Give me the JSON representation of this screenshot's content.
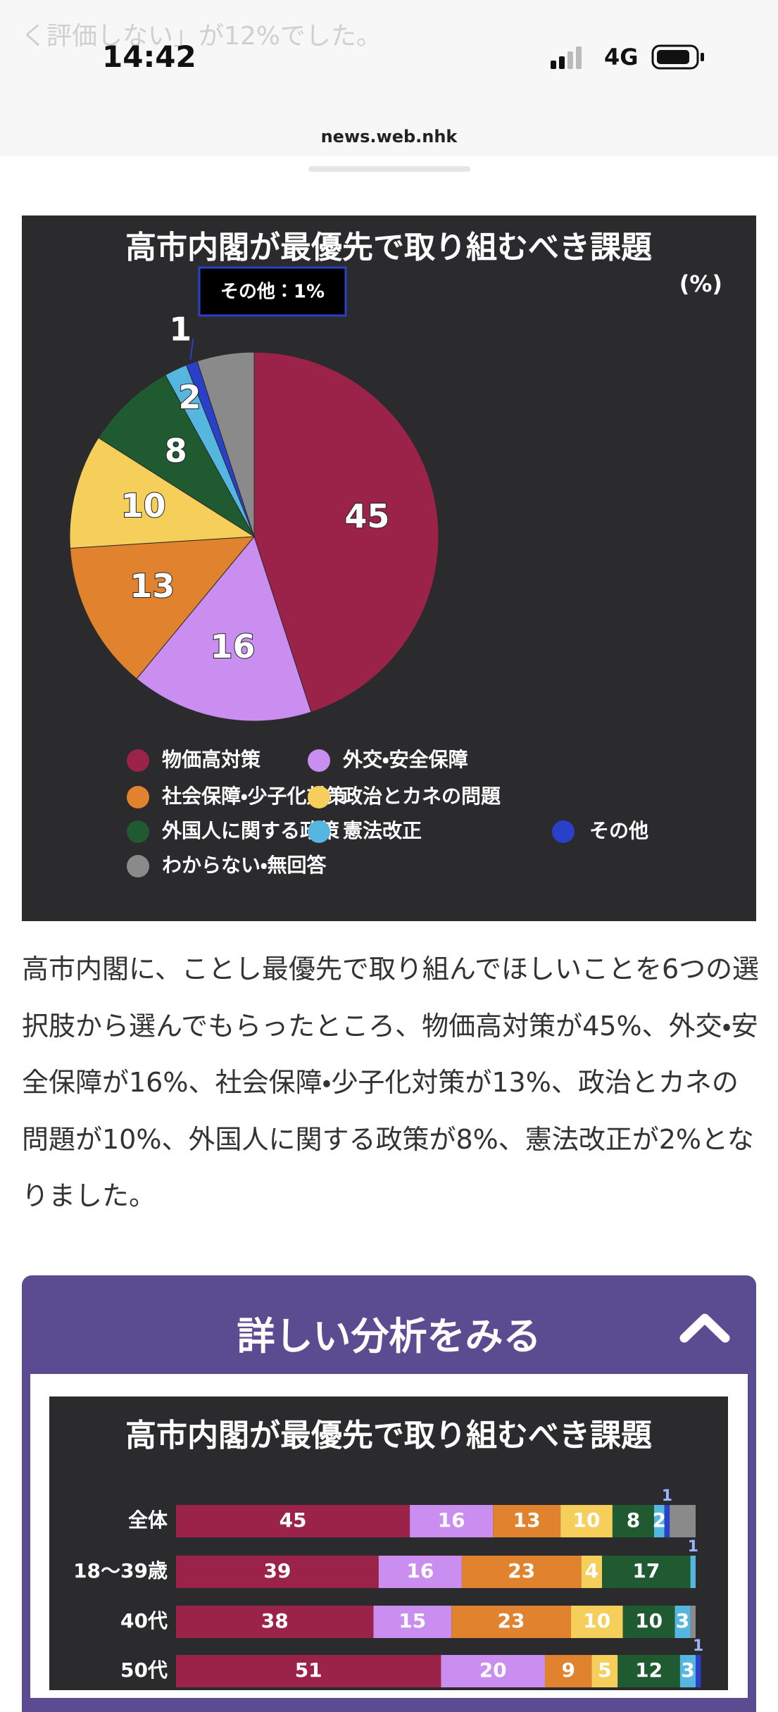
{
  "status_bar": {
    "time": "14:42",
    "network": "4G"
  },
  "top_fragment": "く評価しない」が12%でした。",
  "url": "news.web.nhk",
  "chart_data": [
    {
      "type": "pie",
      "title": "高市内閣が最優先で取り組むべき課題",
      "unit_label": "(%)",
      "tooltip": "その他：1%",
      "categories": [
        "物価高対策",
        "外交・安全保障",
        "社会保障・少子化対策",
        "政治とカネの問題",
        "外国人に関する政策",
        "憲法改正",
        "その他",
        "わからない・無回答"
      ],
      "values": [
        45,
        16,
        13,
        10,
        8,
        2,
        1,
        5
      ],
      "value_labels": [
        "45",
        "16",
        "13",
        "10",
        "8",
        "2",
        "1",
        null
      ],
      "colors": [
        "#9b2349",
        "#c98ef0",
        "#e0822e",
        "#f5cf5a",
        "#1f5a31",
        "#55b6e0",
        "#2a40c8",
        "#8a8a8a"
      ]
    },
    {
      "type": "bar",
      "orientation": "horizontal",
      "stacked": true,
      "title": "高市内閣が最優先で取り組むべき課題",
      "categories": [
        "全体",
        "18〜39歳",
        "40代",
        "50代"
      ],
      "xlim": [
        0,
        100
      ],
      "series": [
        {
          "name": "物価高対策",
          "color": "#9b2349",
          "values": [
            45,
            39,
            38,
            51
          ],
          "value_labels": [
            "45",
            "39",
            "38",
            "51"
          ]
        },
        {
          "name": "外交・安全保障",
          "color": "#c98ef0",
          "values": [
            16,
            16,
            15,
            20
          ],
          "value_labels": [
            "16",
            "16",
            "15",
            "20"
          ]
        },
        {
          "name": "社会保障・少子化対策",
          "color": "#e0822e",
          "values": [
            13,
            23,
            23,
            9
          ],
          "value_labels": [
            "13",
            "23",
            "23",
            "9"
          ]
        },
        {
          "name": "政治とカネの問題",
          "color": "#f5cf5a",
          "values": [
            10,
            4,
            10,
            5
          ],
          "value_labels": [
            "10",
            "4",
            "10",
            "5"
          ]
        },
        {
          "name": "外国人に関する政策",
          "color": "#1f5a31",
          "values": [
            8,
            17,
            10,
            12
          ],
          "value_labels": [
            "8",
            "17",
            "10",
            "12"
          ]
        },
        {
          "name": "憲法改正",
          "color": "#55b6e0",
          "values": [
            2,
            1,
            3,
            3
          ],
          "value_labels": [
            "2",
            "1",
            "3",
            "3"
          ]
        },
        {
          "name": "その他",
          "color": "#2a40c8",
          "values": [
            1,
            0,
            0,
            1
          ],
          "value_labels": [
            "1",
            null,
            null,
            "1"
          ]
        },
        {
          "name": "わからない・無回答",
          "color": "#8a8a8a",
          "values": [
            5,
            0,
            1,
            0
          ],
          "value_labels": [
            null,
            null,
            null,
            null
          ]
        }
      ]
    }
  ],
  "article": {
    "paragraph": "高市内閣に、ことし最優先で取り組んでほしいことを6つの選択肢から選んでもらったところ、物価高対策が45%、外交・安全保障が16%、社会保障・少子化対策が13%、政治とカネの問題が10%、外国人に関する政策が8%、憲法改正が2%となりました。"
  },
  "panel": {
    "title": "詳しい分析をみる"
  }
}
